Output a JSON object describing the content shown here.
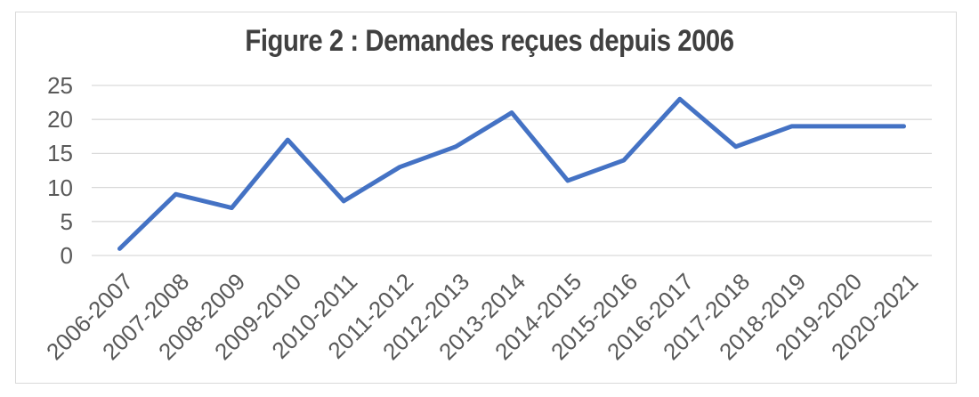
{
  "chart_data": {
    "type": "line",
    "title": "Figure 2 : Demandes reçues depuis 2006",
    "categories": [
      "2006-2007",
      "2007-2008",
      "2008-2009",
      "2009-2010",
      "2010-2011",
      "2011-2012",
      "2012-2013",
      "2013-2014",
      "2014-2015",
      "2015-2016",
      "2016-2017",
      "2017-2018",
      "2018-2019",
      "2019-2020",
      "2020-2021"
    ],
    "values": [
      1,
      9,
      7,
      17,
      8,
      13,
      16,
      21,
      11,
      14,
      23,
      16,
      19,
      19,
      19
    ],
    "yticks": [
      0,
      5,
      10,
      15,
      20,
      25
    ],
    "ylim": [
      0,
      25
    ],
    "grid": true,
    "legend": "none",
    "x_tick_rotation_deg": -45,
    "colors": {
      "line": "#4472C4",
      "gridline": "#D9D9D9",
      "tick_label": "#595959",
      "title": "#404040",
      "frame_border": "#D9D9D9",
      "background": "#FFFFFF"
    }
  }
}
